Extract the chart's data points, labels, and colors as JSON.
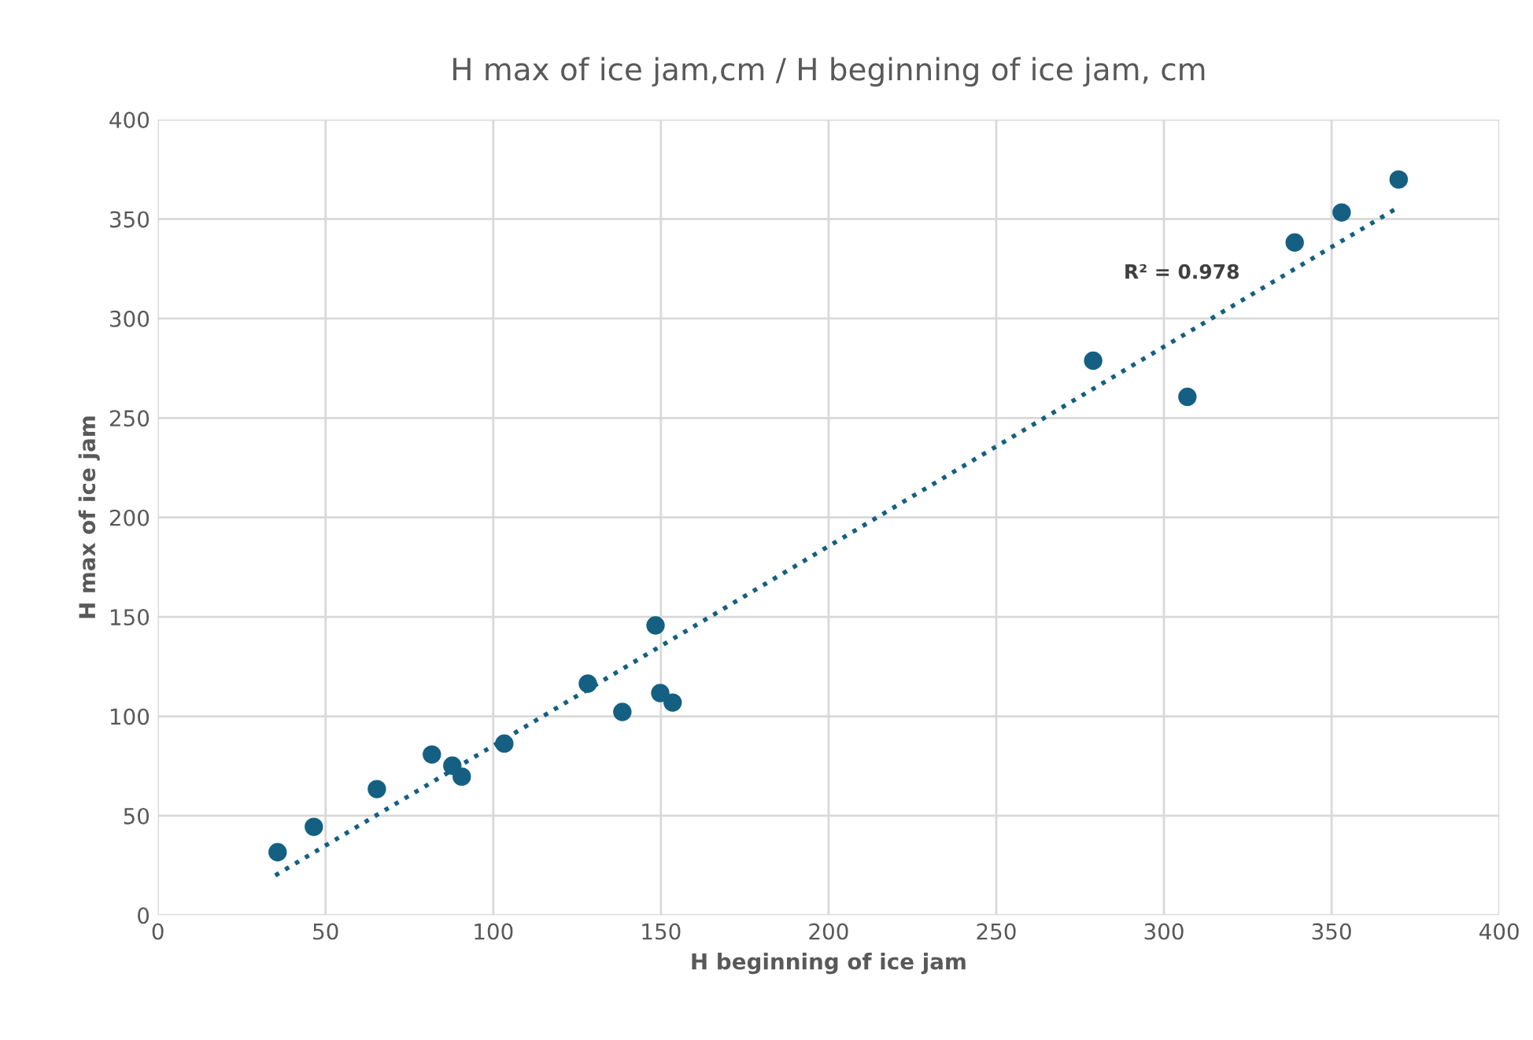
{
  "chart_data": {
    "type": "scatter",
    "title": "H max of ice jam,cm / H beginning of ice jam, cm",
    "xlabel": "H beginning of ice jam",
    "ylabel": "H max of ice jam",
    "xlim": [
      0,
      400
    ],
    "xticks": [
      0,
      50,
      100,
      150,
      200,
      250,
      300,
      350,
      400
    ],
    "ylim": [
      0,
      400
    ],
    "yticks": [
      0,
      50,
      100,
      150,
      200,
      250,
      300,
      350,
      400
    ],
    "grid": true,
    "marker": "circle",
    "annotations": [
      "R² = 0.978"
    ],
    "series": [
      {
        "color": "#156082",
        "x": [
          35.7,
          46.5,
          65.3,
          81.7,
          87.8,
          90.6,
          103.3,
          128.2,
          138.5,
          148.4,
          149.8,
          153.5,
          278.9,
          307,
          339,
          353,
          370
        ],
        "values": [
          31.7,
          44.4,
          63.4,
          80.8,
          75.2,
          69.7,
          86.3,
          116.4,
          102.2,
          145.7,
          111.7,
          106.9,
          278.8,
          260.6,
          338.2,
          353.3,
          369.9
        ]
      },
      {
        "type": "line",
        "color": "#156082",
        "line_style": "dotted",
        "marker": "none",
        "x": [
          35,
          370
        ],
        "values": [
          20,
          356
        ]
      }
    ]
  }
}
